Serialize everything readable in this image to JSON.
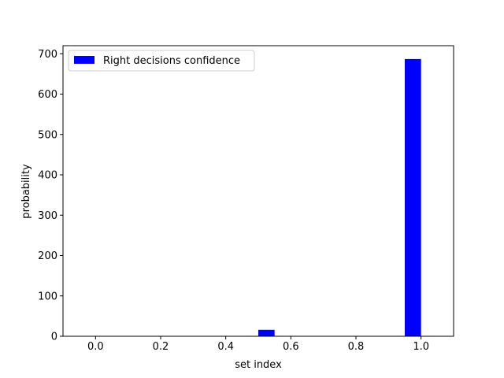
{
  "chart_data": {
    "type": "bar",
    "title": "",
    "xlabel": "set index",
    "ylabel": "probability",
    "xlim": [
      -0.1,
      1.1
    ],
    "ylim": [
      0,
      720
    ],
    "xticks": [
      0.0,
      0.2,
      0.4,
      0.6,
      0.8,
      1.0
    ],
    "xtick_labels": [
      "0.0",
      "0.2",
      "0.4",
      "0.6",
      "0.8",
      "1.0"
    ],
    "yticks": [
      0,
      100,
      200,
      300,
      400,
      500,
      600,
      700
    ],
    "ytick_labels": [
      "0",
      "100",
      "200",
      "300",
      "400",
      "500",
      "600",
      "700"
    ],
    "bin_width": 0.05,
    "series": [
      {
        "name": "Right decisions confidence",
        "color": "#0000ff",
        "bars": [
          {
            "x_start": 0.5,
            "value": 16
          },
          {
            "x_start": 0.95,
            "value": 687
          }
        ]
      }
    ],
    "legend_position": "top-left",
    "grid": false
  }
}
